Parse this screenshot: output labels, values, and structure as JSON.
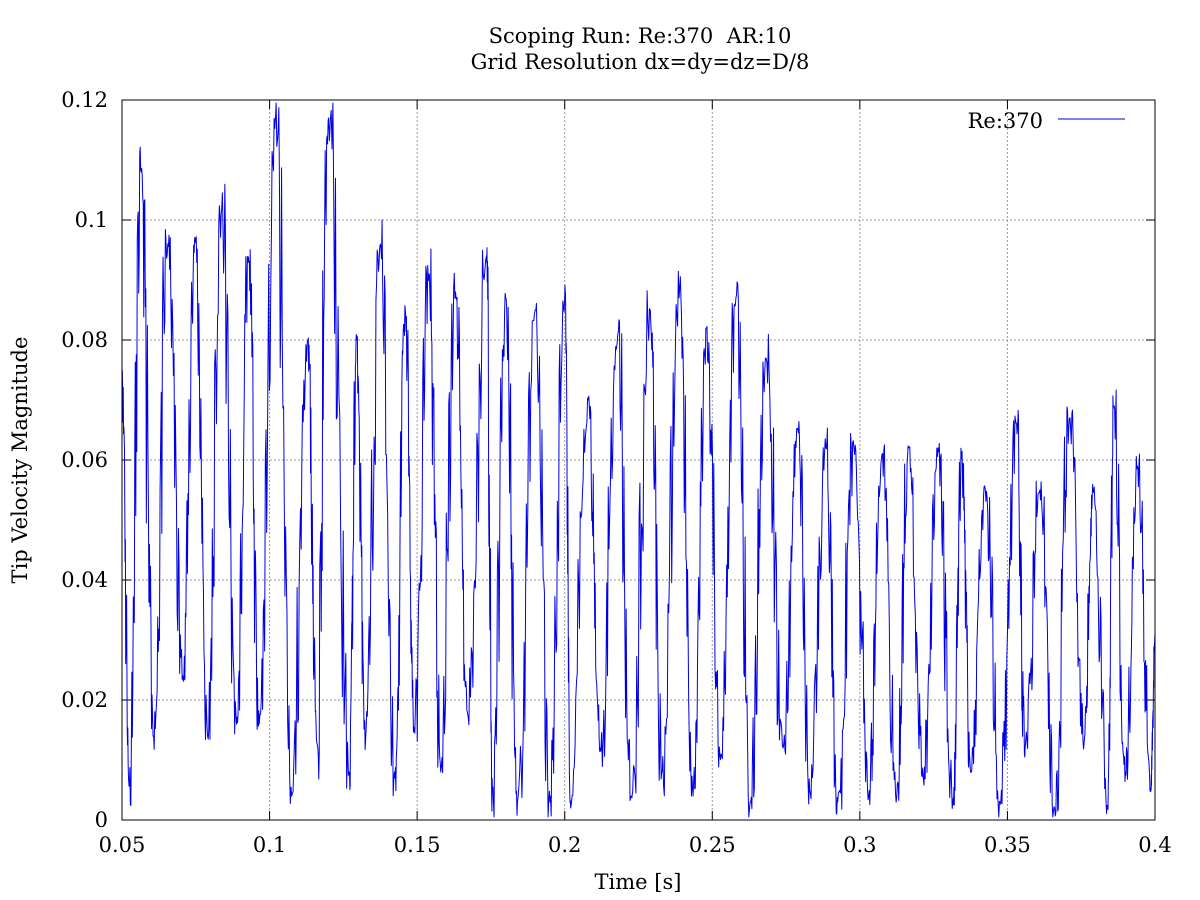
{
  "chart_data": {
    "type": "line",
    "title": "Scoping Run: Re:370  AR:10",
    "subtitle": "Grid Resolution dx=dy=dz=D/8",
    "xlabel": "Time [s]",
    "ylabel": "Tip Velocity Magnitude",
    "xlim": [
      0.05,
      0.4
    ],
    "ylim": [
      0,
      0.12
    ],
    "x_ticks": [
      "0.05",
      "0.1",
      "0.15",
      "0.2",
      "0.25",
      "0.3",
      "0.35",
      "0.4"
    ],
    "y_ticks": [
      "0",
      "0.02",
      "0.04",
      "0.06",
      "0.08",
      "0.1",
      "0.12"
    ],
    "grid": true,
    "legend_position": "top-right",
    "series": [
      {
        "name": "Re:370",
        "color": "#0000e6",
        "peaks": [
          [
            0.05,
            0.075
          ],
          [
            0.0525,
            0.006
          ],
          [
            0.0565,
            0.108
          ],
          [
            0.0607,
            0.014
          ],
          [
            0.0655,
            0.096
          ],
          [
            0.0706,
            0.024
          ],
          [
            0.0748,
            0.097
          ],
          [
            0.079,
            0.014
          ],
          [
            0.0838,
            0.102
          ],
          [
            0.0888,
            0.016
          ],
          [
            0.093,
            0.093
          ],
          [
            0.0965,
            0.016
          ],
          [
            0.102,
            0.117
          ],
          [
            0.1075,
            0.004
          ],
          [
            0.113,
            0.08
          ],
          [
            0.116,
            0.013
          ],
          [
            0.12,
            0.117
          ],
          [
            0.127,
            0.008
          ],
          [
            0.1295,
            0.08
          ],
          [
            0.1325,
            0.013
          ],
          [
            0.1375,
            0.096
          ],
          [
            0.1425,
            0.007
          ],
          [
            0.146,
            0.085
          ],
          [
            0.149,
            0.015
          ],
          [
            0.154,
            0.091
          ],
          [
            0.158,
            0.008
          ],
          [
            0.163,
            0.088
          ],
          [
            0.167,
            0.018
          ],
          [
            0.1735,
            0.094
          ],
          [
            0.1755,
            0.005
          ],
          [
            0.18,
            0.087
          ],
          [
            0.184,
            0.003
          ],
          [
            0.19,
            0.085
          ],
          [
            0.195,
            0.003
          ],
          [
            0.2,
            0.087
          ],
          [
            0.202,
            0.002
          ],
          [
            0.208,
            0.07
          ],
          [
            0.212,
            0.012
          ],
          [
            0.218,
            0.081
          ],
          [
            0.2225,
            0.004
          ],
          [
            0.229,
            0.085
          ],
          [
            0.233,
            0.008
          ],
          [
            0.239,
            0.089
          ],
          [
            0.2435,
            0.004
          ],
          [
            0.248,
            0.082
          ],
          [
            0.253,
            0.011
          ],
          [
            0.258,
            0.087
          ],
          [
            0.263,
            0.003
          ],
          [
            0.268,
            0.077
          ],
          [
            0.274,
            0.012
          ],
          [
            0.279,
            0.065
          ],
          [
            0.283,
            0.005
          ],
          [
            0.2885,
            0.062
          ],
          [
            0.2925,
            0.003
          ],
          [
            0.298,
            0.062
          ],
          [
            0.303,
            0.004
          ],
          [
            0.3075,
            0.061
          ],
          [
            0.3125,
            0.004
          ],
          [
            0.3165,
            0.062
          ],
          [
            0.3215,
            0.007
          ],
          [
            0.3265,
            0.062
          ],
          [
            0.3315,
            0.003
          ],
          [
            0.3345,
            0.061
          ],
          [
            0.3375,
            0.008
          ],
          [
            0.3425,
            0.055
          ],
          [
            0.3475,
            0.003
          ],
          [
            0.353,
            0.066
          ],
          [
            0.356,
            0.012
          ],
          [
            0.361,
            0.055
          ],
          [
            0.366,
            0.002
          ],
          [
            0.371,
            0.067
          ],
          [
            0.376,
            0.013
          ],
          [
            0.379,
            0.055
          ],
          [
            0.384,
            0.002
          ],
          [
            0.386,
            0.069
          ],
          [
            0.39,
            0.008
          ],
          [
            0.394,
            0.059
          ],
          [
            0.3985,
            0.005
          ],
          [
            0.4,
            0.03
          ]
        ]
      }
    ]
  }
}
